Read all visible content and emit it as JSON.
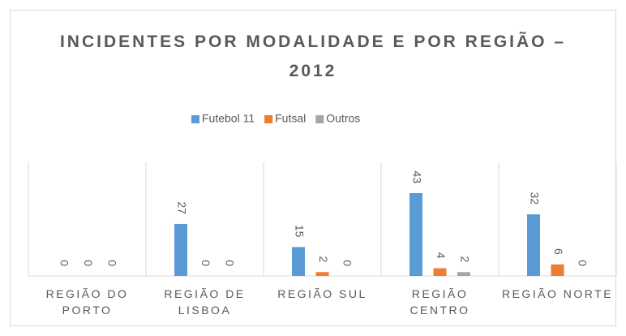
{
  "chart_data": {
    "type": "bar",
    "title": "INCIDENTES POR MODALIDADE E POR REGIÃO – 2012",
    "categories": [
      "REGIÃO DO PORTO",
      "REGIÃO DE LISBOA",
      "REGIÃO SUL",
      "REGIÃO CENTRO",
      "REGIÃO NORTE"
    ],
    "series": [
      {
        "name": "Futebol 11",
        "color": "#5b9bd5",
        "values": [
          0,
          27,
          15,
          43,
          32
        ]
      },
      {
        "name": "Futsal",
        "color": "#ed7d31",
        "values": [
          0,
          0,
          2,
          4,
          6
        ]
      },
      {
        "name": "Outros",
        "color": "#a5a5a5",
        "values": [
          0,
          0,
          0,
          2,
          0
        ]
      }
    ],
    "legend": "top",
    "grid": true
  }
}
